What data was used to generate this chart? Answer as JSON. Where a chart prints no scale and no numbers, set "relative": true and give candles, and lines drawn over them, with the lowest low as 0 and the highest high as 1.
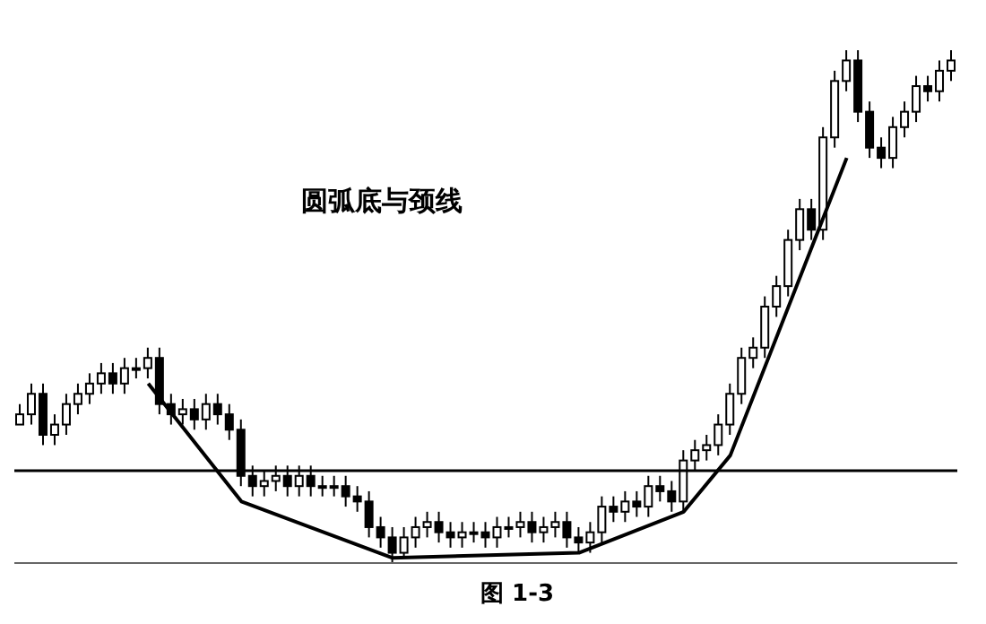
{
  "chart_data": {
    "type": "candlestick",
    "relative": true,
    "color": "#000000",
    "categories": [
      null,
      null,
      null,
      null,
      null,
      null,
      null,
      null,
      null,
      null,
      null,
      null,
      null,
      null,
      null,
      null,
      null,
      null,
      null,
      null,
      null,
      null,
      null,
      null,
      null,
      null,
      null,
      null,
      null,
      null,
      null,
      null,
      null,
      null,
      null,
      null,
      null,
      null,
      null,
      null,
      null,
      null,
      null,
      null,
      null,
      null,
      null,
      null,
      null,
      null,
      null,
      null,
      null,
      null,
      null,
      null,
      null,
      null,
      null,
      null,
      null,
      null,
      null,
      null,
      null,
      null,
      null,
      null,
      null,
      null,
      null,
      null,
      null,
      null,
      null,
      null,
      null,
      null,
      null,
      null,
      null
    ],
    "ohlc": [
      [
        0.27,
        0.31,
        0.27,
        0.29
      ],
      [
        0.29,
        0.35,
        0.27,
        0.33
      ],
      [
        0.33,
        0.35,
        0.23,
        0.25
      ],
      [
        0.25,
        0.29,
        0.23,
        0.27
      ],
      [
        0.27,
        0.33,
        0.25,
        0.31
      ],
      [
        0.31,
        0.35,
        0.29,
        0.33
      ],
      [
        0.33,
        0.37,
        0.31,
        0.35
      ],
      [
        0.35,
        0.39,
        0.33,
        0.37
      ],
      [
        0.37,
        0.39,
        0.33,
        0.35
      ],
      [
        0.35,
        0.4,
        0.33,
        0.38
      ],
      [
        0.38,
        0.4,
        0.36,
        0.38
      ],
      [
        0.38,
        0.42,
        0.36,
        0.4
      ],
      [
        0.4,
        0.42,
        0.29,
        0.31
      ],
      [
        0.31,
        0.33,
        0.27,
        0.29
      ],
      [
        0.29,
        0.32,
        0.27,
        0.3
      ],
      [
        0.3,
        0.32,
        0.26,
        0.28
      ],
      [
        0.28,
        0.33,
        0.26,
        0.31
      ],
      [
        0.31,
        0.33,
        0.27,
        0.29
      ],
      [
        0.29,
        0.31,
        0.24,
        0.26
      ],
      [
        0.26,
        0.28,
        0.15,
        0.17
      ],
      [
        0.17,
        0.19,
        0.13,
        0.15
      ],
      [
        0.15,
        0.18,
        0.13,
        0.16
      ],
      [
        0.16,
        0.19,
        0.14,
        0.17
      ],
      [
        0.17,
        0.19,
        0.13,
        0.15
      ],
      [
        0.15,
        0.19,
        0.13,
        0.17
      ],
      [
        0.17,
        0.19,
        0.13,
        0.15
      ],
      [
        0.15,
        0.17,
        0.13,
        0.15
      ],
      [
        0.15,
        0.17,
        0.13,
        0.15
      ],
      [
        0.15,
        0.17,
        0.11,
        0.13
      ],
      [
        0.13,
        0.15,
        0.1,
        0.12
      ],
      [
        0.12,
        0.14,
        0.05,
        0.07
      ],
      [
        0.07,
        0.09,
        0.03,
        0.05
      ],
      [
        0.05,
        0.07,
        0.0,
        0.02
      ],
      [
        0.02,
        0.07,
        0.01,
        0.05
      ],
      [
        0.05,
        0.09,
        0.03,
        0.07
      ],
      [
        0.07,
        0.1,
        0.05,
        0.08
      ],
      [
        0.08,
        0.1,
        0.04,
        0.06
      ],
      [
        0.06,
        0.08,
        0.03,
        0.05
      ],
      [
        0.05,
        0.08,
        0.03,
        0.06
      ],
      [
        0.06,
        0.08,
        0.04,
        0.06
      ],
      [
        0.06,
        0.08,
        0.03,
        0.05
      ],
      [
        0.05,
        0.09,
        0.03,
        0.07
      ],
      [
        0.07,
        0.09,
        0.05,
        0.07
      ],
      [
        0.07,
        0.1,
        0.05,
        0.08
      ],
      [
        0.08,
        0.1,
        0.04,
        0.06
      ],
      [
        0.06,
        0.09,
        0.04,
        0.07
      ],
      [
        0.07,
        0.1,
        0.05,
        0.08
      ],
      [
        0.08,
        0.1,
        0.03,
        0.05
      ],
      [
        0.05,
        0.07,
        0.02,
        0.04
      ],
      [
        0.04,
        0.08,
        0.02,
        0.06
      ],
      [
        0.06,
        0.13,
        0.04,
        0.11
      ],
      [
        0.11,
        0.13,
        0.08,
        0.1
      ],
      [
        0.1,
        0.14,
        0.08,
        0.12
      ],
      [
        0.12,
        0.14,
        0.09,
        0.11
      ],
      [
        0.11,
        0.17,
        0.09,
        0.15
      ],
      [
        0.15,
        0.17,
        0.12,
        0.14
      ],
      [
        0.14,
        0.16,
        0.1,
        0.12
      ],
      [
        0.12,
        0.22,
        0.1,
        0.2
      ],
      [
        0.2,
        0.24,
        0.18,
        0.22
      ],
      [
        0.22,
        0.25,
        0.2,
        0.23
      ],
      [
        0.23,
        0.29,
        0.21,
        0.27
      ],
      [
        0.27,
        0.35,
        0.25,
        0.33
      ],
      [
        0.33,
        0.42,
        0.31,
        0.4
      ],
      [
        0.4,
        0.44,
        0.38,
        0.42
      ],
      [
        0.42,
        0.52,
        0.4,
        0.5
      ],
      [
        0.5,
        0.56,
        0.48,
        0.54
      ],
      [
        0.54,
        0.65,
        0.52,
        0.63
      ],
      [
        0.63,
        0.71,
        0.61,
        0.69
      ],
      [
        0.69,
        0.71,
        0.63,
        0.65
      ],
      [
        0.65,
        0.85,
        0.63,
        0.83
      ],
      [
        0.83,
        0.96,
        0.81,
        0.94
      ],
      [
        0.94,
        1.0,
        0.92,
        0.98
      ],
      [
        0.98,
        1.0,
        0.86,
        0.88
      ],
      [
        0.88,
        0.9,
        0.79,
        0.81
      ],
      [
        0.81,
        0.83,
        0.77,
        0.79
      ],
      [
        0.79,
        0.87,
        0.77,
        0.85
      ],
      [
        0.85,
        0.9,
        0.83,
        0.88
      ],
      [
        0.88,
        0.95,
        0.86,
        0.93
      ],
      [
        0.93,
        0.95,
        0.9,
        0.92
      ],
      [
        0.92,
        0.98,
        0.9,
        0.96
      ],
      [
        0.96,
        1.0,
        0.94,
        0.98
      ]
    ],
    "series": [
      {
        "type": "line",
        "color": "#000000",
        "values": [
          null,
          null,
          null,
          null,
          null,
          null,
          null,
          null,
          null,
          null,
          null,
          0.35,
          null,
          null,
          null,
          null,
          null,
          null,
          null,
          0.12,
          null,
          null,
          null,
          null,
          null,
          null,
          null,
          null,
          null,
          null,
          null,
          null,
          0.01,
          null,
          null,
          null,
          null,
          null,
          null,
          null,
          null,
          null,
          null,
          null,
          null,
          null,
          null,
          null,
          0.02,
          null,
          null,
          null,
          null,
          null,
          null,
          null,
          null,
          0.1,
          null,
          null,
          null,
          0.21,
          null,
          null,
          null,
          null,
          null,
          null,
          null,
          null,
          null,
          0.79,
          null,
          null,
          null,
          null,
          null,
          null,
          null,
          null,
          null
        ]
      }
    ],
    "ref_lines": [
      {
        "axis": "y",
        "value": 0.18,
        "color": "#000000"
      }
    ],
    "annotations": [
      "圆弧底与颈线",
      "图 1-3"
    ]
  }
}
